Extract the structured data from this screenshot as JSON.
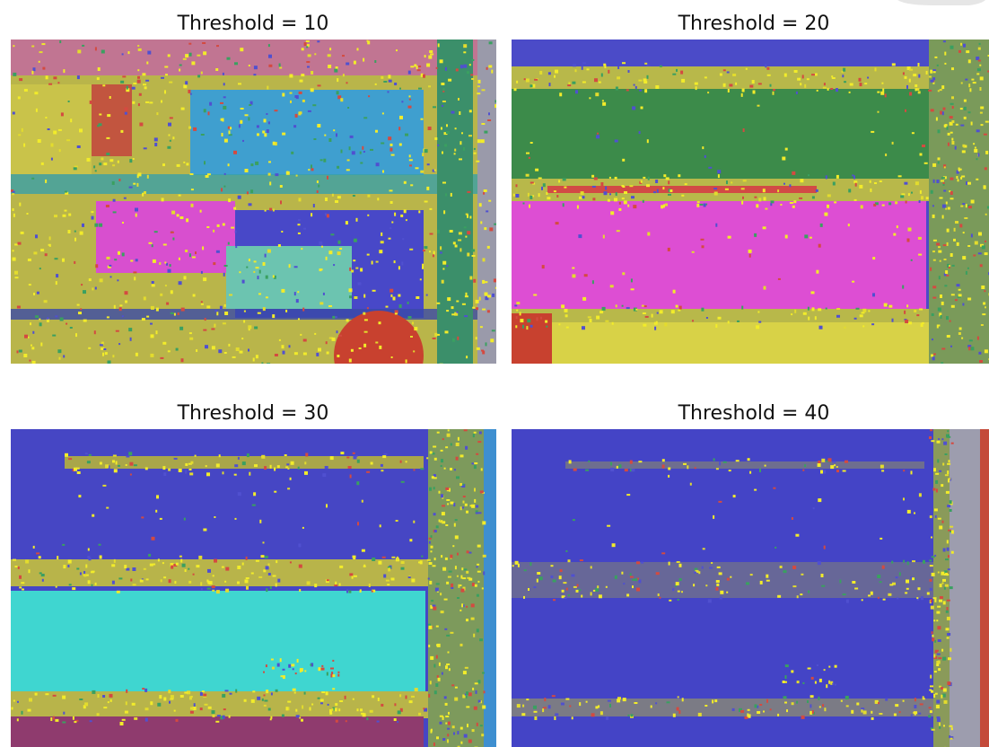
{
  "panels": [
    {
      "title": "Threshold = 10"
    },
    {
      "title": "Threshold = 20"
    },
    {
      "title": "Threshold = 30"
    },
    {
      "title": "Threshold = 40"
    }
  ]
}
